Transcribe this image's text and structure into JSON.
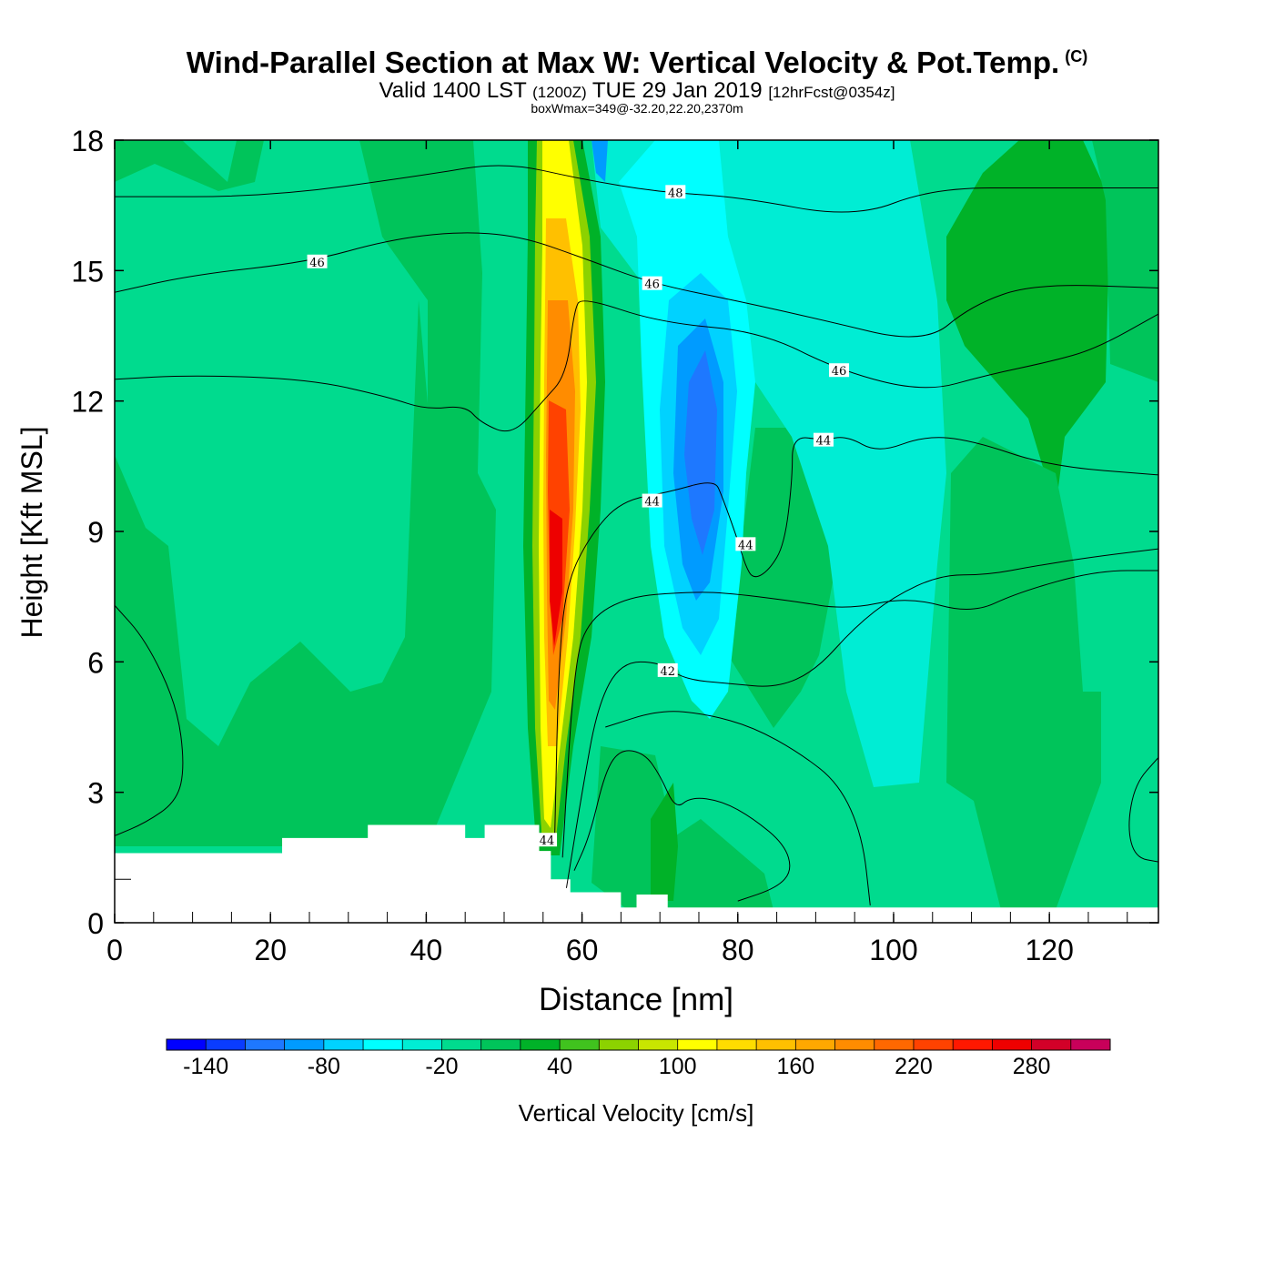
{
  "header": {
    "title": "Wind-Parallel Section at Max W: Vertical Velocity & Pot.Temp.",
    "copyright": "(C)",
    "valid_prefix": "Valid 1400 LST",
    "valid_utc": "(1200Z)",
    "valid_date": "TUE 29 Jan 2019",
    "forecast": "[12hrFcst@0354z]",
    "box_info": "boxWmax=349@-32.20,22.20,2370m"
  },
  "colors": {
    "background_green": "#00db8e",
    "plot_border": "#000000"
  },
  "chart_data": {
    "type": "heatmap",
    "title": "Wind-Parallel Section at Max W: Vertical Velocity & Pot.Temp.",
    "xlabel": "Distance [nm]",
    "ylabel": "Height [Kft MSL]",
    "xlim": [
      0,
      134
    ],
    "ylim": [
      0,
      18
    ],
    "x_ticks": [
      "0",
      "20",
      "40",
      "60",
      "80",
      "100",
      "120"
    ],
    "x_tick_values": [
      0,
      20,
      40,
      60,
      80,
      100,
      120
    ],
    "y_ticks": [
      "0",
      "3",
      "6",
      "9",
      "12",
      "15",
      "18"
    ],
    "y_tick_values": [
      0,
      3,
      6,
      9,
      12,
      15,
      18
    ],
    "colorbar": {
      "label": "Vertical Velocity [cm/s]",
      "levels": [
        -160,
        -140,
        -120,
        -100,
        -80,
        -60,
        -40,
        -20,
        0,
        20,
        40,
        60,
        80,
        100,
        120,
        140,
        160,
        180,
        200,
        220,
        240,
        260,
        280,
        300,
        320
      ],
      "colors": [
        "#0000ff",
        "#0a3cff",
        "#1e78ff",
        "#009bff",
        "#00d2ff",
        "#00ffff",
        "#00edd4",
        "#00db8e",
        "#00c45a",
        "#00b228",
        "#40c31e",
        "#8cd200",
        "#c8e600",
        "#ffff00",
        "#ffdc00",
        "#ffc000",
        "#ffa800",
        "#ff8c00",
        "#ff6800",
        "#ff4200",
        "#ff1800",
        "#ee0000",
        "#d20028",
        "#c8005a"
      ],
      "tick_labels": [
        "-140",
        "-80",
        "-20",
        "40",
        "100",
        "160",
        "220",
        "280"
      ],
      "tick_values": [
        -140,
        -80,
        -20,
        40,
        100,
        160,
        220,
        280
      ]
    },
    "updraft": {
      "x_center_nm": 57,
      "peak_cm_s": 349,
      "peak_height_kft": 8,
      "top_kft": 18,
      "base_kft": 1.8
    },
    "downdraft": {
      "x_center_nm": 75,
      "min_cm_s": -140,
      "height_range_kft": [
        5,
        15
      ]
    },
    "contour_variable": "Potential temperature",
    "contour_labels": [
      {
        "text": "48",
        "x": 72,
        "y": 16.8
      },
      {
        "text": "46",
        "x": 26,
        "y": 15.2
      },
      {
        "text": "46",
        "x": 69,
        "y": 14.7
      },
      {
        "text": "46",
        "x": 93,
        "y": 12.7
      },
      {
        "text": "44",
        "x": 91,
        "y": 11.1
      },
      {
        "text": "44",
        "x": 69,
        "y": 9.7
      },
      {
        "text": "44",
        "x": 81,
        "y": 8.7
      },
      {
        "text": "42",
        "x": 71,
        "y": 5.8
      },
      {
        "text": "44",
        "x": 55.5,
        "y": 1.9
      }
    ],
    "contours": [
      {
        "level": "48",
        "points": [
          [
            0,
            16.7
          ],
          [
            20,
            16.7
          ],
          [
            40,
            17.2
          ],
          [
            50,
            17.5
          ],
          [
            60,
            17.1
          ],
          [
            70,
            16.8
          ],
          [
            80,
            16.7
          ],
          [
            95,
            16.2
          ],
          [
            105,
            16.9
          ],
          [
            120,
            16.9
          ],
          [
            134,
            16.9
          ]
        ]
      },
      {
        "level": "46",
        "points": [
          [
            0,
            14.5
          ],
          [
            10,
            14.9
          ],
          [
            25,
            15.2
          ],
          [
            35,
            15.7
          ],
          [
            44,
            15.9
          ],
          [
            52,
            15.8
          ],
          [
            60,
            15.3
          ],
          [
            69,
            14.7
          ],
          [
            80,
            14.3
          ],
          [
            90,
            13.9
          ],
          [
            104,
            13.3
          ],
          [
            110,
            14.2
          ],
          [
            118,
            14.7
          ],
          [
            134,
            14.6
          ]
        ]
      },
      {
        "level": "46",
        "points": [
          [
            0,
            12.5
          ],
          [
            10,
            12.6
          ],
          [
            25,
            12.5
          ],
          [
            35,
            12.1
          ],
          [
            40,
            11.8
          ],
          [
            45,
            11.9
          ],
          [
            47,
            11.5
          ],
          [
            51,
            11.2
          ],
          [
            55,
            12.0
          ],
          [
            58,
            12.6
          ],
          [
            59,
            14.1
          ],
          [
            60,
            14.4
          ],
          [
            70,
            13.8
          ],
          [
            83,
            13.6
          ],
          [
            93,
            12.7
          ],
          [
            104,
            12.2
          ],
          [
            112,
            12.6
          ],
          [
            120,
            12.9
          ],
          [
            126,
            13.2
          ],
          [
            134,
            14.0
          ]
        ]
      },
      {
        "level": "44",
        "points": [
          [
            56.5,
            2.0
          ],
          [
            57,
            6
          ],
          [
            58,
            7.8
          ],
          [
            61,
            8.9
          ],
          [
            65,
            9.7
          ],
          [
            71,
            9.9
          ],
          [
            77,
            10.2
          ],
          [
            78,
            9.8
          ],
          [
            80,
            8.8
          ],
          [
            81,
            8.2
          ],
          [
            82,
            7.9
          ],
          [
            84,
            8.1
          ],
          [
            86,
            8.7
          ],
          [
            87,
            10.2
          ],
          [
            87,
            11.2
          ],
          [
            91,
            11.1
          ],
          [
            94,
            11.2
          ],
          [
            98,
            10.8
          ],
          [
            104,
            11.2
          ],
          [
            110,
            11.1
          ],
          [
            120,
            10.5
          ],
          [
            134,
            10.3
          ]
        ]
      },
      {
        "level": "44",
        "points": [
          [
            57.5,
            1.5
          ],
          [
            59,
            6
          ],
          [
            61,
            7.0
          ],
          [
            66,
            7.5
          ],
          [
            73,
            7.6
          ],
          [
            78,
            7.6
          ],
          [
            87,
            7.4
          ],
          [
            94,
            7.2
          ],
          [
            102,
            7.5
          ],
          [
            110,
            7.1
          ],
          [
            116,
            7.6
          ],
          [
            126,
            8.1
          ],
          [
            134,
            8.1
          ]
        ]
      },
      {
        "level": "42",
        "points": [
          [
            58,
            0.8
          ],
          [
            60,
            3
          ],
          [
            62,
            5.0
          ],
          [
            65,
            6.0
          ],
          [
            70,
            6.0
          ],
          [
            73,
            5.6
          ],
          [
            79,
            5.5
          ],
          [
            85,
            5.4
          ],
          [
            90,
            5.8
          ],
          [
            95,
            6.8
          ],
          [
            100,
            7.5
          ],
          [
            106,
            8.0
          ],
          [
            112,
            8.0
          ],
          [
            118,
            8.2
          ],
          [
            125,
            8.4
          ],
          [
            134,
            8.6
          ]
        ]
      },
      {
        "level": "42",
        "points": [
          [
            59,
            1.2
          ],
          [
            61,
            2.0
          ],
          [
            63,
            3.5
          ],
          [
            65,
            4.0
          ],
          [
            68,
            3.9
          ],
          [
            70,
            3.4
          ],
          [
            72,
            2.6
          ],
          [
            74,
            2.9
          ],
          [
            78,
            2.8
          ],
          [
            82,
            2.4
          ],
          [
            86,
            1.8
          ],
          [
            87,
            1.2
          ],
          [
            85,
            0.8
          ],
          [
            80,
            0.5
          ]
        ]
      },
      {
        "level": "42",
        "points": [
          [
            63,
            4.5
          ],
          [
            70,
            4.9
          ],
          [
            76,
            4.8
          ],
          [
            82,
            4.5
          ],
          [
            88,
            3.9
          ],
          [
            93,
            3.2
          ],
          [
            96,
            2.0
          ],
          [
            97,
            0.4
          ]
        ]
      },
      {
        "level": "40",
        "points": [
          [
            0,
            7.3
          ],
          [
            4,
            6.5
          ],
          [
            8,
            5.0
          ],
          [
            9,
            3.6
          ],
          [
            8,
            2.8
          ],
          [
            4,
            2.3
          ],
          [
            0,
            2.0
          ]
        ]
      },
      {
        "level": "40",
        "points": [
          [
            134,
            3.8
          ],
          [
            131,
            3.2
          ],
          [
            130,
            2.2
          ],
          [
            131,
            1.5
          ],
          [
            134,
            1.4
          ]
        ]
      }
    ],
    "terrain_kft": [
      [
        0,
        1.6
      ],
      [
        21.5,
        1.6
      ],
      [
        21.5,
        1.95
      ],
      [
        32.5,
        1.95
      ],
      [
        32.5,
        2.25
      ],
      [
        45,
        2.25
      ],
      [
        45,
        1.95
      ],
      [
        47.5,
        1.95
      ],
      [
        47.5,
        2.25
      ],
      [
        54.5,
        2.25
      ],
      [
        54.5,
        1.65
      ],
      [
        56,
        1.65
      ],
      [
        56,
        1.0
      ],
      [
        58.5,
        1.0
      ],
      [
        58.5,
        0.7
      ],
      [
        65,
        0.7
      ],
      [
        65,
        0.35
      ],
      [
        67,
        0.35
      ],
      [
        67,
        0.65
      ],
      [
        71,
        0.65
      ],
      [
        71,
        0.35
      ],
      [
        134,
        0.35
      ]
    ]
  }
}
